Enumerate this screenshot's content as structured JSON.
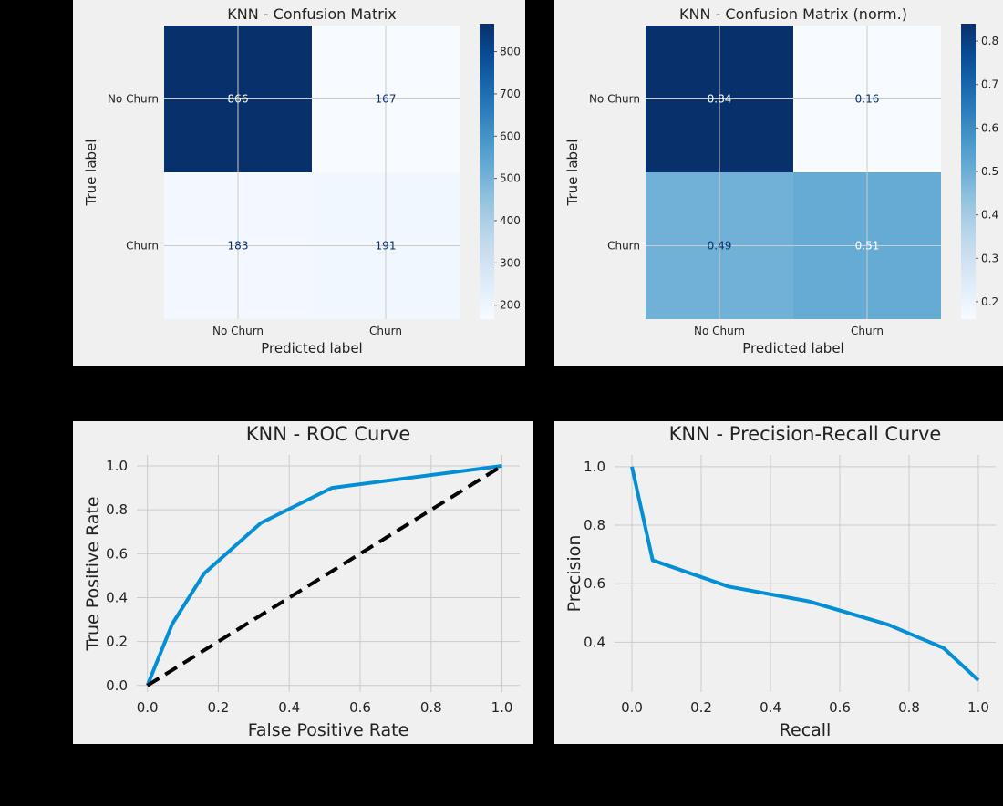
{
  "chart_data": [
    {
      "type": "heatmap",
      "title": "KNN - Confusion Matrix",
      "xlabel": "Predicted label",
      "ylabel": "True label",
      "x_categories": [
        "No Churn",
        "Churn"
      ],
      "y_categories": [
        "No Churn",
        "Churn"
      ],
      "values": [
        [
          866,
          167
        ],
        [
          183,
          191
        ]
      ],
      "value_labels": [
        [
          "866",
          "167"
        ],
        [
          "183",
          "191"
        ]
      ],
      "colormap": "Blues",
      "colorbar": {
        "vmin": 167,
        "vmax": 866,
        "ticks": [
          200,
          300,
          400,
          500,
          600,
          700,
          800
        ]
      },
      "grid": true
    },
    {
      "type": "heatmap",
      "title": "KNN - Confusion Matrix (norm.)",
      "xlabel": "Predicted label",
      "ylabel": "True label",
      "x_categories": [
        "No Churn",
        "Churn"
      ],
      "y_categories": [
        "No Churn",
        "Churn"
      ],
      "values": [
        [
          0.84,
          0.16
        ],
        [
          0.49,
          0.51
        ]
      ],
      "value_labels": [
        [
          "0.84",
          "0.16"
        ],
        [
          "0.49",
          "0.51"
        ]
      ],
      "colormap": "Blues",
      "colorbar": {
        "vmin": 0.16,
        "vmax": 0.84,
        "ticks": [
          0.2,
          0.3,
          0.4,
          0.5,
          0.6,
          0.7,
          0.8
        ]
      },
      "grid": true
    },
    {
      "type": "line",
      "title": "KNN - ROC Curve",
      "xlabel": "False Positive Rate",
      "ylabel": "True Positive Rate",
      "xlim": [
        -0.03,
        1.05
      ],
      "ylim": [
        -0.03,
        1.05
      ],
      "xticks": [
        0.0,
        0.2,
        0.4,
        0.6,
        0.8,
        1.0
      ],
      "yticks": [
        0.0,
        0.2,
        0.4,
        0.6,
        0.8,
        1.0
      ],
      "series": [
        {
          "x": [
            0.0,
            0.07,
            0.16,
            0.32,
            0.52,
            1.0
          ],
          "y": [
            0.0,
            0.28,
            0.51,
            0.74,
            0.9,
            1.0
          ],
          "color": "#008fd5",
          "style": "solid"
        },
        {
          "x": [
            0.0,
            1.0
          ],
          "y": [
            0.0,
            1.0
          ],
          "color": "#000000",
          "style": "dashed"
        }
      ],
      "grid": true
    },
    {
      "type": "line",
      "title": "KNN - Precision-Recall Curve",
      "xlabel": "Recall",
      "ylabel": "Precision",
      "xlim": [
        -0.05,
        1.05
      ],
      "ylim": [
        0.23,
        1.04
      ],
      "xticks": [
        0.0,
        0.2,
        0.4,
        0.6,
        0.8,
        1.0
      ],
      "yticks": [
        0.4,
        0.6,
        0.8,
        1.0
      ],
      "series": [
        {
          "x": [
            0.0,
            0.06,
            0.28,
            0.51,
            0.74,
            0.9,
            1.0
          ],
          "y": [
            1.0,
            0.68,
            0.59,
            0.54,
            0.46,
            0.38,
            0.27
          ],
          "color": "#008fd5",
          "style": "solid"
        }
      ],
      "grid": true
    }
  ]
}
